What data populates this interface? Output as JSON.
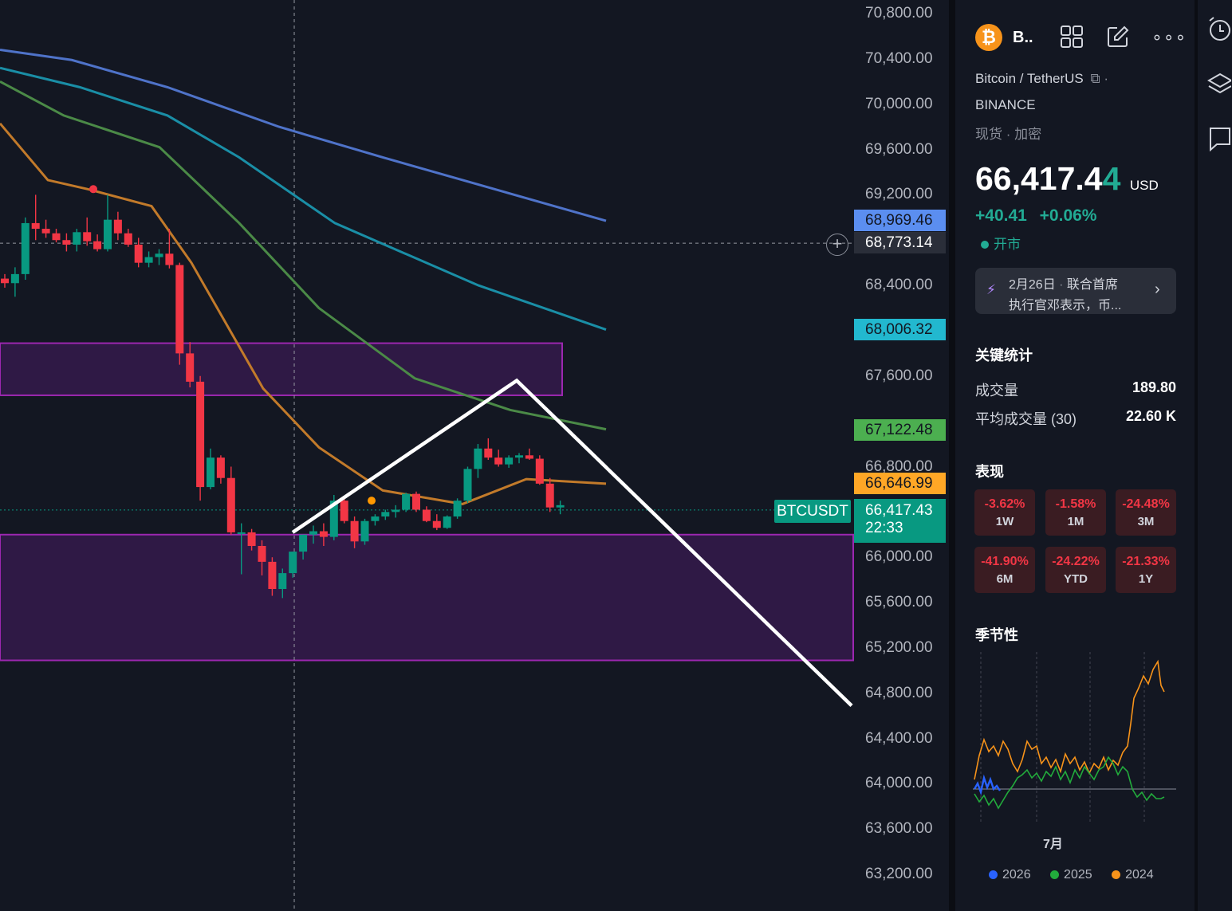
{
  "symbol": {
    "short": "B..",
    "name": "Bitcoin / TetherUS",
    "exchange": "BINANCE",
    "category": "现货",
    "sub_category": "加密",
    "price_main": "66,417.4",
    "price_last_digit": "4",
    "currency": "USD",
    "change_abs": "+40.41",
    "change_pct": "+0.06%",
    "market_status": "开市"
  },
  "news": {
    "date": "2月26日",
    "line1": "联合首席",
    "line2": "执行官邓表示，币..."
  },
  "key_stats": {
    "title": "关键统计",
    "rows": [
      {
        "label": "成交量",
        "value": "189.80"
      },
      {
        "label": "平均成交量 (30)",
        "value": "22.60 K"
      }
    ]
  },
  "performance": {
    "title": "表现",
    "items": [
      {
        "value": "-3.62%",
        "label": "1W"
      },
      {
        "value": "-1.58%",
        "label": "1M"
      },
      {
        "value": "-24.48%",
        "label": "3M"
      },
      {
        "value": "-41.90%",
        "label": "6M"
      },
      {
        "value": "-24.22%",
        "label": "YTD"
      },
      {
        "value": "-21.33%",
        "label": "1Y"
      }
    ]
  },
  "seasonality": {
    "title": "季节性",
    "x_label": "7月",
    "legend": [
      {
        "year": "2026",
        "color": "#2962ff"
      },
      {
        "year": "2025",
        "color": "#22ab3c"
      },
      {
        "year": "2024",
        "color": "#f7931a"
      }
    ]
  },
  "axis": {
    "ticks": [
      "70,800.00",
      "70,400.00",
      "70,000.00",
      "69,600.00",
      "69,200.00",
      "68,400.00",
      "67,600.00",
      "66,800.00",
      "66,000.00",
      "65,600.00",
      "65,200.00",
      "64,800.00",
      "64,400.00",
      "64,000.00",
      "63,600.00",
      "63,200.00"
    ],
    "tick_values": [
      70800,
      70400,
      70000,
      69600,
      69200,
      68400,
      67600,
      66800,
      66000,
      65600,
      65200,
      64800,
      64400,
      64000,
      63600,
      63200
    ],
    "price_tags": [
      {
        "text": "68,969.46",
        "value": 68969.46,
        "color": "#5b8ef0"
      },
      {
        "text": "68,773.14",
        "value": 68773.14,
        "color": "#2a2e39"
      },
      {
        "text": "68,006.32",
        "value": 68006.32,
        "color": "#22b8cf"
      },
      {
        "text": "67,122.48",
        "value": 67122.48,
        "color": "#4caf50"
      },
      {
        "text": "66,646.99",
        "value": 66646.99,
        "color": "#ffa726"
      }
    ],
    "last_price": {
      "text": "66,417.43",
      "countdown": "22:33",
      "label": "BTCUSDT",
      "value": 66417.43
    }
  },
  "chart_data": {
    "type": "candlestick",
    "symbol": "BTCUSDT",
    "ylim": [
      63000,
      70950
    ],
    "candles": [
      [
        68460,
        68500,
        68380,
        68420
      ],
      [
        68420,
        68560,
        68300,
        68500
      ],
      [
        68500,
        69000,
        68450,
        68950
      ],
      [
        68950,
        69200,
        68800,
        68900
      ],
      [
        68900,
        68980,
        68820,
        68860
      ],
      [
        68860,
        68900,
        68780,
        68800
      ],
      [
        68800,
        68860,
        68700,
        68760
      ],
      [
        68760,
        68900,
        68700,
        68870
      ],
      [
        68870,
        69000,
        68750,
        68790
      ],
      [
        68790,
        68850,
        68700,
        68720
      ],
      [
        68720,
        69200,
        68700,
        68980
      ],
      [
        68980,
        69050,
        68800,
        68860
      ],
      [
        68860,
        68900,
        68740,
        68760
      ],
      [
        68760,
        68820,
        68560,
        68600
      ],
      [
        68600,
        68700,
        68560,
        68650
      ],
      [
        68650,
        68720,
        68580,
        68680
      ],
      [
        68680,
        68900,
        68550,
        68580
      ],
      [
        68580,
        68600,
        67700,
        67800
      ],
      [
        67800,
        67900,
        67500,
        67550
      ],
      [
        67550,
        67600,
        66500,
        66620
      ],
      [
        66620,
        66960,
        66600,
        66880
      ],
      [
        66880,
        66900,
        66650,
        66700
      ],
      [
        66700,
        66800,
        66200,
        66220
      ],
      [
        66220,
        66300,
        65850,
        66220
      ],
      [
        66220,
        66250,
        66060,
        66100
      ],
      [
        66100,
        66150,
        65840,
        65960
      ],
      [
        65960,
        66000,
        65660,
        65720
      ],
      [
        65720,
        65900,
        65640,
        65860
      ],
      [
        65860,
        66050,
        65820,
        66050
      ],
      [
        66050,
        66200,
        65980,
        66200
      ],
      [
        66200,
        66280,
        66120,
        66230
      ],
      [
        66230,
        66300,
        66100,
        66180
      ],
      [
        66180,
        66550,
        66150,
        66500
      ],
      [
        66500,
        66530,
        66300,
        66320
      ],
      [
        66320,
        66360,
        66080,
        66140
      ],
      [
        66140,
        66340,
        66110,
        66320
      ],
      [
        66320,
        66380,
        66280,
        66360
      ],
      [
        66360,
        66420,
        66330,
        66400
      ],
      [
        66400,
        66460,
        66350,
        66420
      ],
      [
        66420,
        66570,
        66400,
        66560
      ],
      [
        66560,
        66580,
        66400,
        66420
      ],
      [
        66420,
        66450,
        66310,
        66320
      ],
      [
        66320,
        66380,
        66240,
        66260
      ],
      [
        66260,
        66370,
        66250,
        66360
      ],
      [
        66360,
        66520,
        66340,
        66500
      ],
      [
        66500,
        66800,
        66480,
        66780
      ],
      [
        66780,
        67000,
        66700,
        66960
      ],
      [
        66960,
        67050,
        66860,
        66880
      ],
      [
        66880,
        66950,
        66800,
        66820
      ],
      [
        66820,
        66900,
        66790,
        66880
      ],
      [
        66880,
        66920,
        66830,
        66900
      ],
      [
        66900,
        66960,
        66860,
        66870
      ],
      [
        66870,
        66900,
        66640,
        66650
      ],
      [
        66650,
        66700,
        66400,
        66440
      ],
      [
        66440,
        66500,
        66380,
        66460
      ]
    ],
    "moving_averages": [
      {
        "color": "#4f73c9",
        "points": [
          [
            0,
            70480
          ],
          [
            90,
            70390
          ],
          [
            210,
            70150
          ],
          [
            350,
            69800
          ],
          [
            480,
            69530
          ],
          [
            600,
            69290
          ],
          [
            760,
            68970
          ]
        ]
      },
      {
        "color": "#1a8ea6",
        "points": [
          [
            0,
            70320
          ],
          [
            100,
            70150
          ],
          [
            210,
            69900
          ],
          [
            300,
            69530
          ],
          [
            420,
            68950
          ],
          [
            600,
            68400
          ],
          [
            760,
            68010
          ]
        ]
      },
      {
        "color": "#4b8a47",
        "points": [
          [
            0,
            70200
          ],
          [
            80,
            69900
          ],
          [
            200,
            69620
          ],
          [
            300,
            68950
          ],
          [
            400,
            68200
          ],
          [
            520,
            67580
          ],
          [
            640,
            67300
          ],
          [
            760,
            67130
          ]
        ]
      },
      {
        "color": "#c27a2a",
        "points": [
          [
            0,
            69830
          ],
          [
            60,
            69330
          ],
          [
            110,
            69250
          ],
          [
            190,
            69100
          ],
          [
            240,
            68600
          ],
          [
            330,
            67490
          ],
          [
            400,
            66970
          ],
          [
            480,
            66590
          ],
          [
            580,
            66470
          ],
          [
            660,
            66690
          ],
          [
            760,
            66650
          ]
        ]
      }
    ],
    "zones": [
      {
        "x0": 0,
        "x1": 705,
        "y_top": 67890,
        "y_bottom": 67430
      },
      {
        "x0": 0,
        "x1": 1070,
        "y_top": 66200,
        "y_bottom": 65090
      }
    ],
    "drawn_lines": [
      {
        "points": [
          [
            367,
            66220
          ],
          [
            648,
            67560
          ],
          [
            1068,
            64690
          ]
        ]
      }
    ]
  }
}
